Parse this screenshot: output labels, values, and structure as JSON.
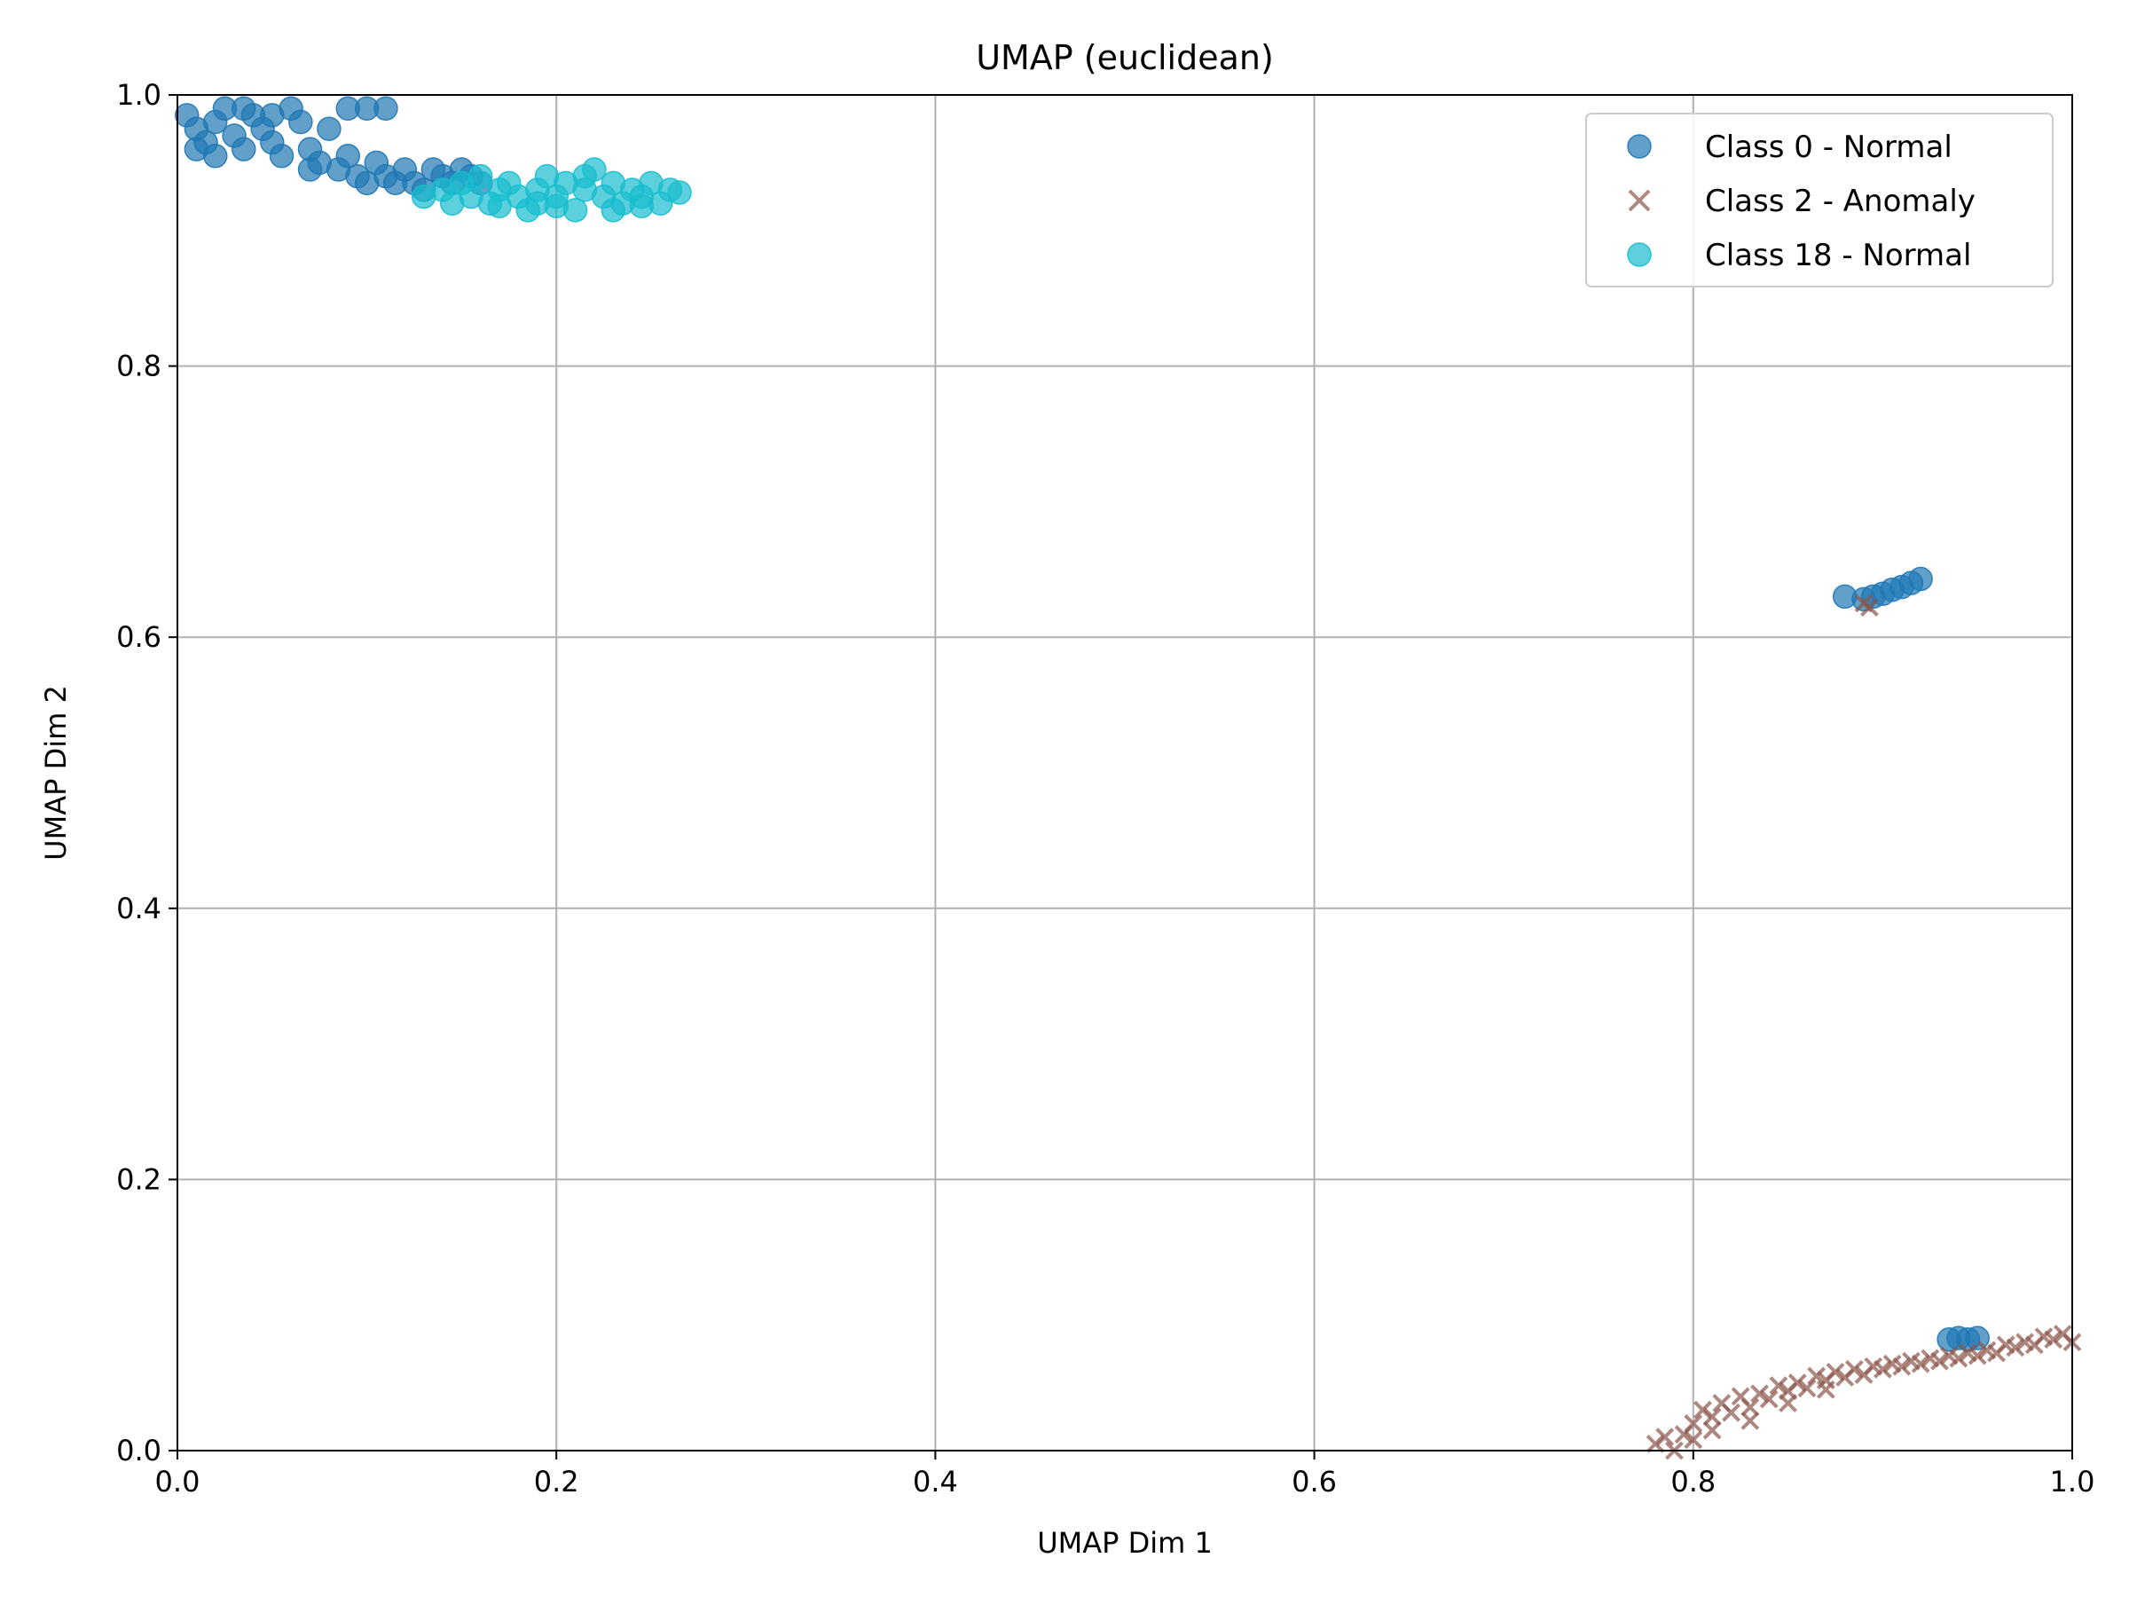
{
  "chart_data": {
    "type": "scatter",
    "title": "UMAP (euclidean)",
    "xlabel": "UMAP Dim 1",
    "ylabel": "UMAP Dim 2",
    "xlim": [
      0.0,
      1.0
    ],
    "ylim": [
      0.0,
      1.0
    ],
    "xticks": [
      "0.0",
      "0.2",
      "0.4",
      "0.6",
      "0.8",
      "1.0"
    ],
    "yticks": [
      "0.0",
      "0.2",
      "0.4",
      "0.6",
      "0.8",
      "1.0"
    ],
    "grid": true,
    "legend_position": "top-right",
    "series": [
      {
        "name": "Class 0 - Normal",
        "marker": "circle",
        "color": "#1f77b4",
        "points": [
          [
            0.005,
            0.985
          ],
          [
            0.01,
            0.975
          ],
          [
            0.015,
            0.965
          ],
          [
            0.02,
            0.98
          ],
          [
            0.025,
            0.99
          ],
          [
            0.03,
            0.97
          ],
          [
            0.035,
            0.96
          ],
          [
            0.04,
            0.985
          ],
          [
            0.045,
            0.975
          ],
          [
            0.05,
            0.965
          ],
          [
            0.055,
            0.955
          ],
          [
            0.06,
            0.99
          ],
          [
            0.065,
            0.98
          ],
          [
            0.07,
            0.96
          ],
          [
            0.075,
            0.95
          ],
          [
            0.08,
            0.975
          ],
          [
            0.085,
            0.945
          ],
          [
            0.09,
            0.955
          ],
          [
            0.095,
            0.94
          ],
          [
            0.1,
            0.99
          ],
          [
            0.105,
            0.95
          ],
          [
            0.11,
            0.94
          ],
          [
            0.115,
            0.935
          ],
          [
            0.12,
            0.945
          ],
          [
            0.125,
            0.935
          ],
          [
            0.13,
            0.93
          ],
          [
            0.135,
            0.945
          ],
          [
            0.14,
            0.94
          ],
          [
            0.145,
            0.935
          ],
          [
            0.15,
            0.945
          ],
          [
            0.155,
            0.94
          ],
          [
            0.16,
            0.935
          ],
          [
            0.01,
            0.96
          ],
          [
            0.02,
            0.955
          ],
          [
            0.035,
            0.99
          ],
          [
            0.05,
            0.985
          ],
          [
            0.09,
            0.99
          ],
          [
            0.11,
            0.99
          ],
          [
            0.07,
            0.945
          ],
          [
            0.1,
            0.935
          ],
          [
            0.88,
            0.63
          ],
          [
            0.89,
            0.628
          ],
          [
            0.895,
            0.63
          ],
          [
            0.9,
            0.632
          ],
          [
            0.905,
            0.635
          ],
          [
            0.91,
            0.637
          ],
          [
            0.915,
            0.64
          ],
          [
            0.92,
            0.643
          ],
          [
            0.935,
            0.082
          ],
          [
            0.94,
            0.083
          ],
          [
            0.945,
            0.082
          ],
          [
            0.95,
            0.083
          ]
        ]
      },
      {
        "name": "Class 2 - Anomaly",
        "marker": "x",
        "color": "#8c564b",
        "points": [
          [
            0.78,
            0.005
          ],
          [
            0.785,
            0.01
          ],
          [
            0.79,
            0.0
          ],
          [
            0.795,
            0.012
          ],
          [
            0.8,
            0.02
          ],
          [
            0.805,
            0.03
          ],
          [
            0.81,
            0.025
          ],
          [
            0.815,
            0.035
          ],
          [
            0.82,
            0.028
          ],
          [
            0.825,
            0.04
          ],
          [
            0.83,
            0.032
          ],
          [
            0.835,
            0.042
          ],
          [
            0.84,
            0.038
          ],
          [
            0.845,
            0.048
          ],
          [
            0.85,
            0.044
          ],
          [
            0.855,
            0.05
          ],
          [
            0.86,
            0.046
          ],
          [
            0.865,
            0.055
          ],
          [
            0.87,
            0.052
          ],
          [
            0.875,
            0.058
          ],
          [
            0.88,
            0.054
          ],
          [
            0.885,
            0.06
          ],
          [
            0.89,
            0.056
          ],
          [
            0.895,
            0.062
          ],
          [
            0.9,
            0.06
          ],
          [
            0.905,
            0.064
          ],
          [
            0.91,
            0.062
          ],
          [
            0.915,
            0.066
          ],
          [
            0.92,
            0.064
          ],
          [
            0.925,
            0.068
          ],
          [
            0.93,
            0.066
          ],
          [
            0.935,
            0.07
          ],
          [
            0.94,
            0.068
          ],
          [
            0.945,
            0.072
          ],
          [
            0.95,
            0.07
          ],
          [
            0.955,
            0.074
          ],
          [
            0.96,
            0.072
          ],
          [
            0.965,
            0.078
          ],
          [
            0.97,
            0.076
          ],
          [
            0.975,
            0.08
          ],
          [
            0.98,
            0.078
          ],
          [
            0.985,
            0.084
          ],
          [
            0.99,
            0.082
          ],
          [
            0.995,
            0.086
          ],
          [
            1.0,
            0.08
          ],
          [
            0.8,
            0.008
          ],
          [
            0.81,
            0.015
          ],
          [
            0.83,
            0.022
          ],
          [
            0.85,
            0.035
          ],
          [
            0.87,
            0.045
          ],
          [
            0.89,
            0.625
          ],
          [
            0.893,
            0.622
          ]
        ]
      },
      {
        "name": "Class 18 - Normal",
        "marker": "circle",
        "color": "#17becf",
        "points": [
          [
            0.13,
            0.925
          ],
          [
            0.14,
            0.93
          ],
          [
            0.145,
            0.92
          ],
          [
            0.15,
            0.935
          ],
          [
            0.155,
            0.925
          ],
          [
            0.16,
            0.94
          ],
          [
            0.165,
            0.92
          ],
          [
            0.17,
            0.93
          ],
          [
            0.175,
            0.935
          ],
          [
            0.18,
            0.925
          ],
          [
            0.185,
            0.915
          ],
          [
            0.19,
            0.93
          ],
          [
            0.195,
            0.94
          ],
          [
            0.2,
            0.925
          ],
          [
            0.205,
            0.935
          ],
          [
            0.21,
            0.915
          ],
          [
            0.215,
            0.93
          ],
          [
            0.22,
            0.945
          ],
          [
            0.225,
            0.925
          ],
          [
            0.23,
            0.935
          ],
          [
            0.235,
            0.92
          ],
          [
            0.24,
            0.93
          ],
          [
            0.245,
            0.925
          ],
          [
            0.25,
            0.935
          ],
          [
            0.255,
            0.92
          ],
          [
            0.26,
            0.93
          ],
          [
            0.265,
            0.928
          ],
          [
            0.17,
            0.918
          ],
          [
            0.2,
            0.918
          ],
          [
            0.23,
            0.915
          ],
          [
            0.19,
            0.92
          ],
          [
            0.215,
            0.94
          ],
          [
            0.245,
            0.918
          ]
        ]
      }
    ]
  }
}
